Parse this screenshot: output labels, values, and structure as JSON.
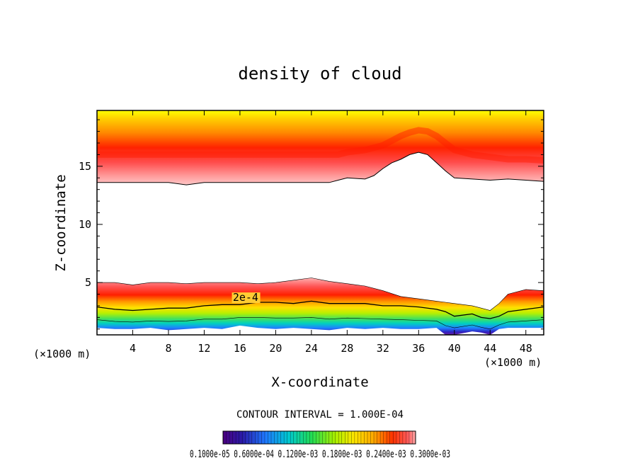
{
  "chart_data": {
    "type": "contour",
    "title": "density of cloud",
    "xlabel": "X-coordinate",
    "ylabel": "Z-coordinate",
    "x_unit": "(×1000 m)",
    "z_unit": "(×1000 m)",
    "xlim": [
      0,
      50
    ],
    "ylim": [
      0.5,
      19.8
    ],
    "x_ticks": [
      4,
      8,
      12,
      16,
      20,
      24,
      28,
      32,
      36,
      40,
      44,
      48
    ],
    "y_ticks": [
      5,
      10,
      15
    ],
    "contour_label": "2e-4",
    "contour_interval": "CONTOUR INTERVAL = 1.000E-04",
    "colorbar_labels": "0.1000e-05 0.6000e-04 0.1200e-03 0.1800e-03 0.2400e-03 0.3000e-03",
    "upper_cloud": {
      "x": [
        0,
        2,
        4,
        6,
        8,
        10,
        12,
        14,
        16,
        18,
        20,
        22,
        24,
        26,
        27,
        28,
        30,
        31,
        32,
        33,
        34,
        35,
        36,
        37,
        38,
        39,
        40,
        42,
        44,
        46,
        48,
        50
      ],
      "base": [
        13.6,
        13.6,
        13.6,
        13.6,
        13.6,
        13.4,
        13.6,
        13.6,
        13.6,
        13.6,
        13.6,
        13.6,
        13.6,
        13.6,
        13.8,
        14.0,
        13.9,
        14.2,
        14.8,
        15.3,
        15.6,
        16.0,
        16.2,
        16.0,
        15.3,
        14.6,
        14.0,
        13.9,
        13.8,
        13.9,
        13.8,
        13.7
      ],
      "top": 19.8,
      "peak_height": [
        16.0,
        16.0,
        16.0,
        16.0,
        16.0,
        16.0,
        16.0,
        16.0,
        16.0,
        16.0,
        16.0,
        16.0,
        16.0,
        16.0,
        16.0,
        16.2,
        16.4,
        16.6,
        16.8,
        17.2,
        17.6,
        17.9,
        18.1,
        18.0,
        17.6,
        17.0,
        16.4,
        16.0,
        15.8,
        15.6,
        15.6,
        15.5
      ]
    },
    "lower_cloud": {
      "x": [
        0,
        2,
        4,
        6,
        8,
        10,
        12,
        14,
        16,
        18,
        20,
        22,
        24,
        26,
        28,
        30,
        32,
        34,
        36,
        38,
        39,
        40,
        42,
        43,
        44,
        45,
        46,
        48,
        50
      ],
      "top": [
        5.0,
        5.0,
        4.8,
        5.0,
        5.0,
        4.9,
        5.0,
        5.0,
        5.0,
        4.9,
        5.0,
        5.2,
        5.4,
        5.1,
        4.9,
        4.7,
        4.3,
        3.8,
        3.6,
        3.4,
        3.3,
        3.2,
        3.0,
        2.8,
        2.6,
        3.2,
        4.0,
        4.4,
        4.3
      ],
      "contour_2e4": [
        2.9,
        2.7,
        2.6,
        2.7,
        2.8,
        2.8,
        3.0,
        3.1,
        3.1,
        3.3,
        3.3,
        3.2,
        3.4,
        3.2,
        3.2,
        3.2,
        3.0,
        3.0,
        2.9,
        2.7,
        2.5,
        2.1,
        2.3,
        2.0,
        1.9,
        2.1,
        2.5,
        2.7,
        2.9
      ],
      "base": [
        1.1,
        1.0,
        1.0,
        1.1,
        0.9,
        1.0,
        1.1,
        1.0,
        1.3,
        1.1,
        1.0,
        1.1,
        1.0,
        0.9,
        1.1,
        1.0,
        1.1,
        1.0,
        1.0,
        1.1,
        0.5,
        0.5,
        0.8,
        0.7,
        0.5,
        1.0,
        1.1,
        1.1,
        1.1
      ]
    }
  }
}
